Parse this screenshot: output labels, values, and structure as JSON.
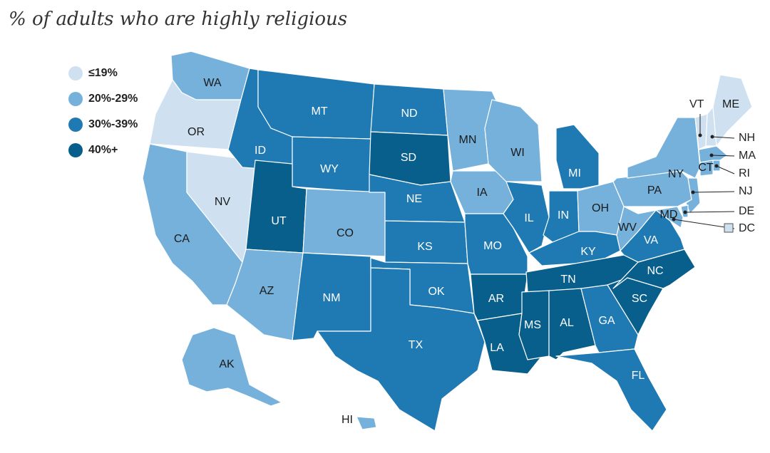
{
  "title": "% of adults who are highly religious",
  "legend": [
    {
      "label": "≤19%",
      "color": "#cfe1f1"
    },
    {
      "label": "20%-29%",
      "color": "#75b1db"
    },
    {
      "label": "30%-39%",
      "color": "#1f7ab3"
    },
    {
      "label": "40%+",
      "color": "#085f8b"
    }
  ],
  "states": [
    {
      "abbr": "WA",
      "bin": 1
    },
    {
      "abbr": "OR",
      "bin": 0
    },
    {
      "abbr": "CA",
      "bin": 1
    },
    {
      "abbr": "NV",
      "bin": 0
    },
    {
      "abbr": "ID",
      "bin": 2
    },
    {
      "abbr": "MT",
      "bin": 2
    },
    {
      "abbr": "WY",
      "bin": 2
    },
    {
      "abbr": "UT",
      "bin": 3
    },
    {
      "abbr": "AZ",
      "bin": 1
    },
    {
      "abbr": "CO",
      "bin": 1
    },
    {
      "abbr": "NM",
      "bin": 2
    },
    {
      "abbr": "ND",
      "bin": 2
    },
    {
      "abbr": "SD",
      "bin": 3
    },
    {
      "abbr": "NE",
      "bin": 2
    },
    {
      "abbr": "KS",
      "bin": 2
    },
    {
      "abbr": "OK",
      "bin": 2
    },
    {
      "abbr": "TX",
      "bin": 2
    },
    {
      "abbr": "MN",
      "bin": 1
    },
    {
      "abbr": "IA",
      "bin": 1
    },
    {
      "abbr": "MO",
      "bin": 2
    },
    {
      "abbr": "AR",
      "bin": 3
    },
    {
      "abbr": "LA",
      "bin": 3
    },
    {
      "abbr": "WI",
      "bin": 1
    },
    {
      "abbr": "IL",
      "bin": 2
    },
    {
      "abbr": "MI",
      "bin": 2
    },
    {
      "abbr": "IN",
      "bin": 2
    },
    {
      "abbr": "OH",
      "bin": 1
    },
    {
      "abbr": "KY",
      "bin": 2
    },
    {
      "abbr": "TN",
      "bin": 3
    },
    {
      "abbr": "MS",
      "bin": 3
    },
    {
      "abbr": "AL",
      "bin": 3
    },
    {
      "abbr": "GA",
      "bin": 2
    },
    {
      "abbr": "FL",
      "bin": 2
    },
    {
      "abbr": "SC",
      "bin": 3
    },
    {
      "abbr": "NC",
      "bin": 3
    },
    {
      "abbr": "VA",
      "bin": 2
    },
    {
      "abbr": "WV",
      "bin": 1
    },
    {
      "abbr": "PA",
      "bin": 1
    },
    {
      "abbr": "NY",
      "bin": 1
    },
    {
      "abbr": "VT",
      "bin": 0
    },
    {
      "abbr": "NH",
      "bin": 0
    },
    {
      "abbr": "ME",
      "bin": 0
    },
    {
      "abbr": "MA",
      "bin": 1
    },
    {
      "abbr": "RI",
      "bin": 1
    },
    {
      "abbr": "CT",
      "bin": 1
    },
    {
      "abbr": "NJ",
      "bin": 1
    },
    {
      "abbr": "DE",
      "bin": 1
    },
    {
      "abbr": "MD",
      "bin": 1
    },
    {
      "abbr": "DC",
      "bin": 0
    },
    {
      "abbr": "AK",
      "bin": 1
    },
    {
      "abbr": "HI",
      "bin": 1
    }
  ]
}
